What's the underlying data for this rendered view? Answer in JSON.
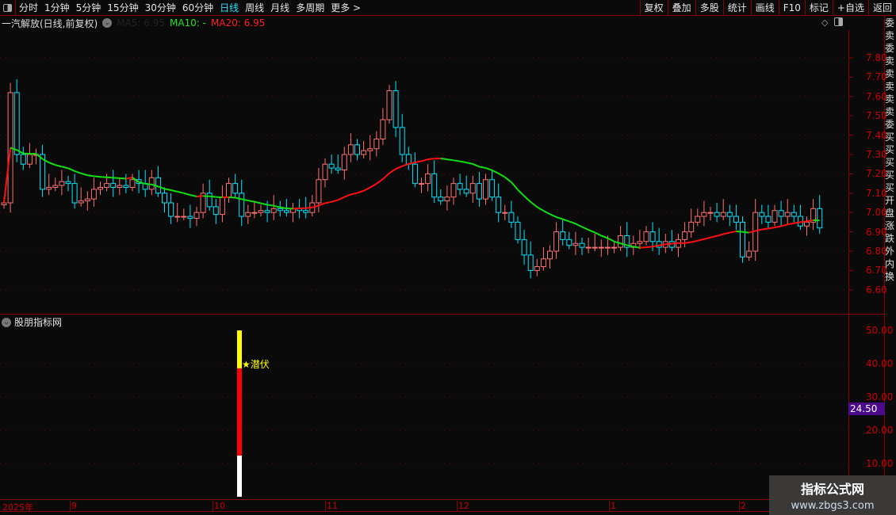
{
  "toolbar": {
    "periods": [
      "分时",
      "1分钟",
      "5分钟",
      "15分钟",
      "30分钟",
      "60分钟",
      "日线",
      "周线",
      "月线",
      "多周期",
      "更多 >"
    ],
    "active": "日线",
    "right_buttons": [
      "复权",
      "叠加",
      "多股",
      "统计",
      "画线",
      "F10",
      "标记",
      "+自选",
      "返回"
    ]
  },
  "main_chart": {
    "title": "一汽解放(日线,前复权)",
    "ma5": "MA5: 6.95",
    "ma10": "MA10: -",
    "ma20": "MA20: 6.95"
  },
  "lower_panel": {
    "title": "股朋指标网",
    "signal_label": "★潜伏",
    "current_value": "24.50"
  },
  "date_axis": [
    "2025年",
    "9",
    "10",
    "11",
    "12",
    "1",
    "2"
  ],
  "watermark": {
    "name": "指标公式网",
    "url": "www.zbgs3.com"
  },
  "side_panel_text": "委卖委卖卖卖卖卖委买买买买买开盘涨跌外内换",
  "colors": {
    "up": "#ff7070",
    "down": "#00e5ff",
    "ma_up": "#ff1010",
    "ma_down": "#10e010",
    "axis": "#d00000"
  },
  "chart_data": [
    {
      "type": "candlestick",
      "y_ticks": [
        "7.80",
        "7.70",
        "7.60",
        "7.50",
        "7.40",
        "7.30",
        "7.20",
        "7.10",
        "7.00",
        "6.90",
        "6.80",
        "6.70",
        "6.60"
      ],
      "ylim": [
        6.55,
        7.82
      ],
      "close": [
        7.05,
        7.62,
        7.3,
        7.25,
        7.3,
        7.3,
        7.12,
        7.13,
        7.14,
        7.16,
        7.15,
        7.05,
        7.06,
        7.07,
        7.12,
        7.13,
        7.15,
        7.13,
        7.14,
        7.13,
        7.17,
        7.15,
        7.12,
        7.18,
        7.1,
        7.05,
        6.98,
        6.98,
        6.98,
        6.97,
        7.0,
        7.1,
        7.03,
        6.99,
        7.08,
        7.15,
        7.1,
        6.98,
        7.0,
        7.0,
        7.01,
        7.0,
        7.02,
        7.01,
        7.0,
        7.02,
        7.01,
        7.0,
        7.05,
        7.17,
        7.25,
        7.23,
        7.22,
        7.3,
        7.35,
        7.3,
        7.32,
        7.33,
        7.38,
        7.48,
        7.63,
        7.44,
        7.3,
        7.25,
        7.15,
        7.15,
        7.2,
        7.08,
        7.06,
        7.08,
        7.15,
        7.12,
        7.1,
        7.15,
        7.07,
        7.17,
        7.08,
        7.0,
        7.0,
        6.95,
        6.86,
        6.78,
        6.7,
        6.72,
        6.76,
        6.8,
        6.9,
        6.86,
        6.83,
        6.84,
        6.82,
        6.82,
        6.82,
        6.82,
        6.82,
        6.82,
        6.88,
        6.82,
        6.84,
        6.85,
        6.9,
        6.85,
        6.82,
        6.85,
        6.82,
        6.86,
        6.9,
        6.95,
        6.98,
        7.0,
        7.0,
        6.98,
        7.0,
        6.98,
        6.95,
        6.77,
        6.8,
        7.0,
        6.98,
        6.95,
        7.01,
        6.98,
        7.0,
        6.98,
        6.93,
        6.95,
        7.02,
        6.92
      ],
      "ma_period": 20
    },
    {
      "type": "bar",
      "y_ticks": [
        "50.00",
        "40.00",
        "30.00",
        "20.00",
        "10.00"
      ],
      "ylim": [
        0,
        60
      ],
      "segments": [
        {
          "from": 0,
          "to": 12.4,
          "color": "#ffffff"
        },
        {
          "from": 12.4,
          "to": 38.6,
          "color": "#ff0000"
        },
        {
          "from": 38.6,
          "to": 50,
          "color": "#ffff00"
        }
      ]
    }
  ]
}
